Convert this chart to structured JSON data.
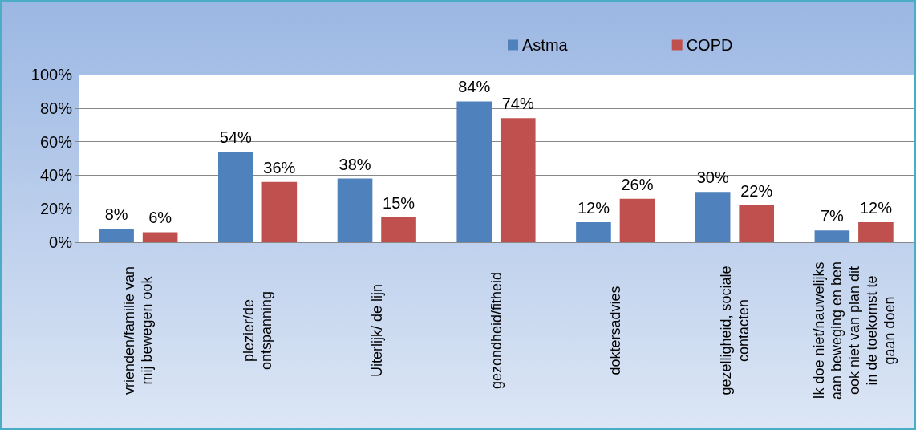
{
  "chart_data": {
    "type": "bar",
    "categories": [
      "vrienden/familie van\nmij bewegen ook",
      "plezier/de\nontspanning",
      "Uiterlijk/ de lijn",
      "gezondheid/fitheid",
      "doktersadvies",
      "gezelligheid, sociale\ncontacten",
      "Ik doe niet/nauwelijks\naan beweging en ben\nook niet van plan dit\nin de toekomst te\ngaan doen"
    ],
    "series": [
      {
        "name": "Astma",
        "color": "#4f81bd",
        "values": [
          8,
          54,
          38,
          84,
          12,
          30,
          7
        ],
        "value_labels": [
          "8%",
          "54%",
          "38%",
          "84%",
          "12%",
          "30%",
          "7%"
        ]
      },
      {
        "name": "COPD",
        "color": "#c0504d",
        "values": [
          6,
          36,
          15,
          74,
          26,
          22,
          12
        ],
        "value_labels": [
          "6%",
          "36%",
          "15%",
          "74%",
          "26%",
          "22%",
          "12%"
        ]
      }
    ],
    "ylim": [
      0,
      100
    ],
    "yticks": [
      {
        "value": 0,
        "label": "0%"
      },
      {
        "value": 20,
        "label": "20%"
      },
      {
        "value": 40,
        "label": "40%"
      },
      {
        "value": 60,
        "label": "60%"
      },
      {
        "value": 80,
        "label": "80%"
      },
      {
        "value": 100,
        "label": "100%"
      }
    ],
    "grid": "y",
    "legend": "top"
  }
}
